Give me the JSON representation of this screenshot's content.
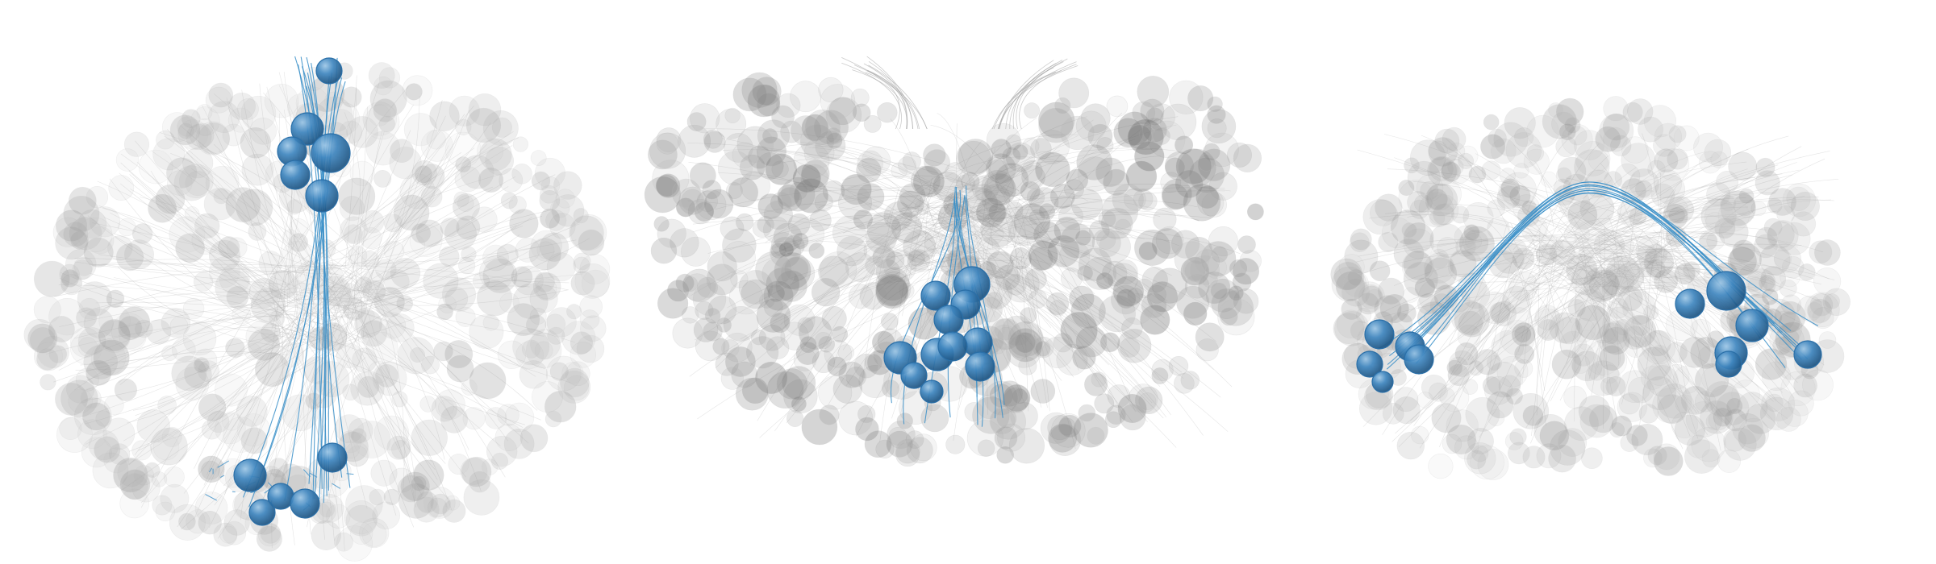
{
  "figure": {
    "background": "#ffffff",
    "panels": [
      {
        "id": "panel-1",
        "view": "oblique-oval"
      },
      {
        "id": "panel-2",
        "view": "front-heart"
      },
      {
        "id": "panel-3",
        "view": "side-dome"
      }
    ]
  },
  "colors": {
    "context_soma": "#8c8c8c",
    "context_neurite": "#b4b4b4",
    "highlight_soma": "#2a6fa8",
    "highlight_soma_light": "#7fb3dc",
    "highlight_neurite": "#3a8fc8"
  }
}
